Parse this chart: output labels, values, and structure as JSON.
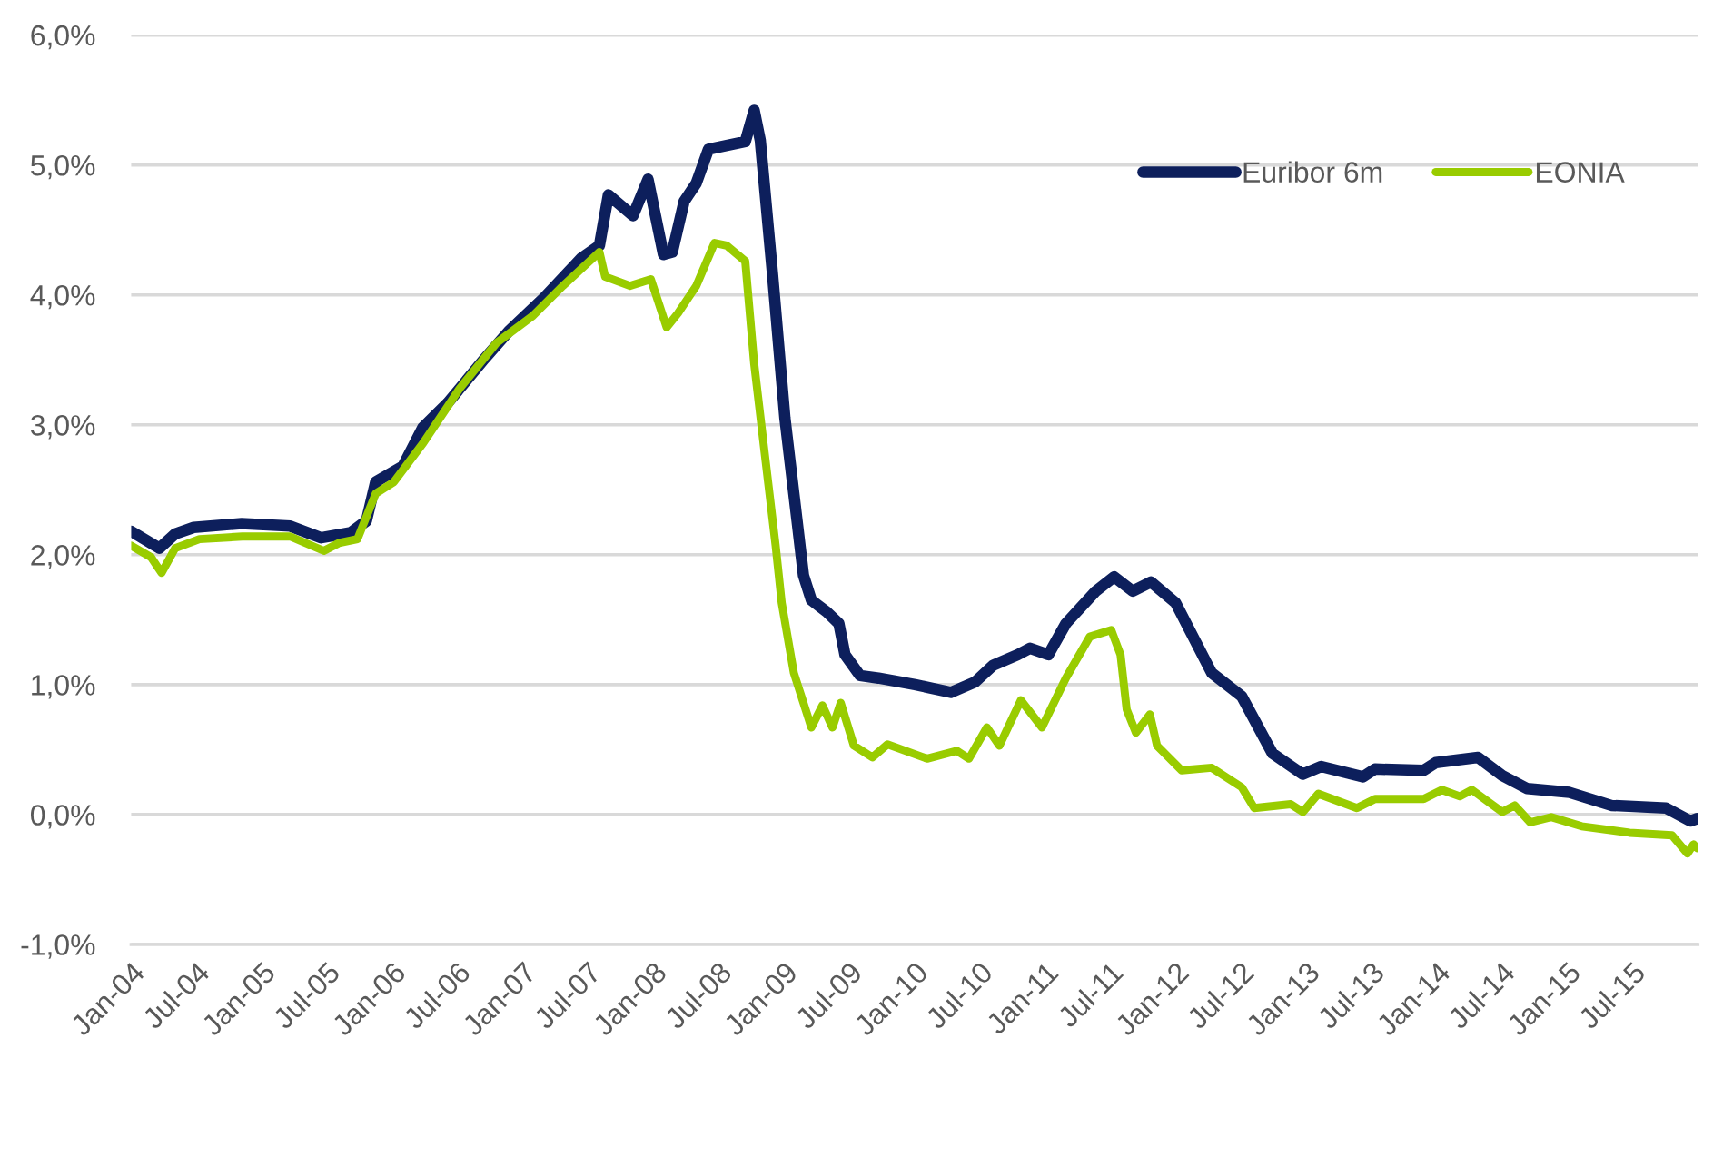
{
  "chart_data": {
    "type": "line",
    "xlim": [
      "2004-01-01",
      "2016-01-01"
    ],
    "xticks": [
      {
        "value": "2004-01-01",
        "label": "Jan-04"
      },
      {
        "value": "2004-07-01",
        "label": "Jul-04"
      },
      {
        "value": "2005-01-01",
        "label": "Jan-05"
      },
      {
        "value": "2005-07-01",
        "label": "Jul-05"
      },
      {
        "value": "2006-01-01",
        "label": "Jan-06"
      },
      {
        "value": "2006-07-01",
        "label": "Jul-06"
      },
      {
        "value": "2007-01-01",
        "label": "Jan-07"
      },
      {
        "value": "2007-07-01",
        "label": "Jul-07"
      },
      {
        "value": "2008-01-01",
        "label": "Jan-08"
      },
      {
        "value": "2008-07-01",
        "label": "Jul-08"
      },
      {
        "value": "2009-01-01",
        "label": "Jan-09"
      },
      {
        "value": "2009-07-01",
        "label": "Jul-09"
      },
      {
        "value": "2010-01-01",
        "label": "Jan-10"
      },
      {
        "value": "2010-07-01",
        "label": "Jul-10"
      },
      {
        "value": "2011-01-01",
        "label": "Jan-11"
      },
      {
        "value": "2011-07-01",
        "label": "Jul-11"
      },
      {
        "value": "2012-01-01",
        "label": "Jan-12"
      },
      {
        "value": "2012-07-01",
        "label": "Jul-12"
      },
      {
        "value": "2013-01-01",
        "label": "Jan-13"
      },
      {
        "value": "2013-07-01",
        "label": "Jul-13"
      },
      {
        "value": "2014-01-01",
        "label": "Jan-14"
      },
      {
        "value": "2014-07-01",
        "label": "Jul-14"
      },
      {
        "value": "2015-01-01",
        "label": "Jan-15"
      },
      {
        "value": "2015-07-01",
        "label": "Jul-15"
      }
    ],
    "ylim": [
      -1,
      6
    ],
    "yticks": [
      {
        "value": -1,
        "label": "-1,0%"
      },
      {
        "value": 0,
        "label": "0,0%"
      },
      {
        "value": 1,
        "label": "1,0%"
      },
      {
        "value": 2,
        "label": "2,0%"
      },
      {
        "value": 3,
        "label": "3,0%"
      },
      {
        "value": 4,
        "label": "4,0%"
      },
      {
        "value": 5,
        "label": "5,0%"
      },
      {
        "value": 6,
        "label": "6,0%"
      }
    ],
    "grid": "y",
    "legend": "top right",
    "marker": "none",
    "line_style": "solid",
    "series": [
      {
        "name": "Euribor 6m",
        "color": "#0d1f5c",
        "x": [
          "2004-01-01",
          "2004-03-20",
          "2004-05-03",
          "2004-06-24",
          "2004-11-05",
          "2005-03-21",
          "2005-06-15",
          "2005-09-06",
          "2005-10-20",
          "2005-11-15",
          "2006-01-30",
          "2006-03-27",
          "2006-06-05",
          "2006-09-16",
          "2006-11-22",
          "2007-03-02",
          "2007-06-12",
          "2007-08-03",
          "2007-08-28",
          "2007-11-05",
          "2007-12-17",
          "2008-01-29",
          "2008-02-23",
          "2008-03-27",
          "2008-04-30",
          "2008-06-03",
          "2008-09-14",
          "2008-10-09",
          "2008-10-26",
          "2008-11-29",
          "2009-01-03",
          "2009-02-06",
          "2009-02-24",
          "2009-03-18",
          "2009-04-30",
          "2009-06-03",
          "2009-06-20",
          "2009-08-01",
          "2009-09-22",
          "2010-01-02",
          "2010-04-12",
          "2010-06-19",
          "2010-08-09",
          "2010-10-16",
          "2010-11-20",
          "2011-01-10",
          "2011-02-28",
          "2011-05-23",
          "2011-07-13",
          "2011-09-03",
          "2011-10-24",
          "2012-01-01",
          "2012-04-11",
          "2012-07-04",
          "2012-09-28",
          "2012-12-22",
          "2013-02-11",
          "2013-06-08",
          "2013-07-12",
          "2013-11-25",
          "2013-12-29",
          "2014-04-26",
          "2014-07-03",
          "2014-09-10",
          "2015-01-07",
          "2015-05-04",
          "2015-10-04",
          "2015-12-11",
          "2015-12-31"
        ],
        "values": [
          2.18,
          2.05,
          2.16,
          2.21,
          2.24,
          2.22,
          2.13,
          2.17,
          2.26,
          2.56,
          2.68,
          2.98,
          3.17,
          3.51,
          3.72,
          3.98,
          4.28,
          4.38,
          4.77,
          4.61,
          4.89,
          4.31,
          4.33,
          4.72,
          4.86,
          5.12,
          5.18,
          5.42,
          5.19,
          4.17,
          3.05,
          2.26,
          1.84,
          1.65,
          1.56,
          1.47,
          1.23,
          1.07,
          1.05,
          1.0,
          0.94,
          1.02,
          1.15,
          1.23,
          1.28,
          1.23,
          1.47,
          1.72,
          1.83,
          1.72,
          1.79,
          1.63,
          1.09,
          0.91,
          0.47,
          0.31,
          0.37,
          0.29,
          0.35,
          0.34,
          0.4,
          0.44,
          0.3,
          0.2,
          0.17,
          0.07,
          0.05,
          -0.05,
          -0.03
        ]
      },
      {
        "name": "EONIA",
        "color": "#99cc00",
        "x": [
          "2004-01-01",
          "2004-02-26",
          "2004-03-26",
          "2004-05-03",
          "2004-07-10",
          "2004-11-07",
          "2005-03-21",
          "2005-06-23",
          "2005-08-04",
          "2005-09-25",
          "2005-11-15",
          "2006-01-05",
          "2006-03-28",
          "2006-07-08",
          "2006-10-19",
          "2007-01-29",
          "2007-04-23",
          "2007-08-03",
          "2007-08-19",
          "2007-10-27",
          "2007-12-25",
          "2008-02-07",
          "2008-03-10",
          "2008-04-30",
          "2008-06-20",
          "2008-07-24",
          "2008-09-14",
          "2008-10-09",
          "2008-11-04",
          "2008-12-08",
          "2008-12-25",
          "2009-01-28",
          "2009-03-18",
          "2009-04-18",
          "2009-05-16",
          "2009-06-08",
          "2009-07-15",
          "2009-09-05",
          "2009-10-17",
          "2010-02-05",
          "2010-04-29",
          "2010-06-02",
          "2010-07-22",
          "2010-08-26",
          "2010-10-25",
          "2010-12-23",
          "2011-02-28",
          "2011-05-06",
          "2011-07-05",
          "2011-07-31",
          "2011-08-17",
          "2011-09-12",
          "2011-10-21",
          "2011-11-10",
          "2012-01-18",
          "2012-04-11",
          "2012-07-04",
          "2012-08-08",
          "2012-11-18",
          "2012-12-22",
          "2013-02-03",
          "2013-05-22",
          "2013-07-12",
          "2013-11-25",
          "2014-01-15",
          "2014-03-06",
          "2014-04-09",
          "2014-07-03",
          "2014-08-07",
          "2014-09-19",
          "2014-11-17",
          "2015-02-10",
          "2015-06-24",
          "2015-10-21",
          "2015-12-03",
          "2015-12-20",
          "2015-12-31"
        ],
        "values": [
          2.07,
          1.98,
          1.86,
          2.05,
          2.12,
          2.14,
          2.14,
          2.03,
          2.09,
          2.12,
          2.47,
          2.56,
          2.86,
          3.28,
          3.63,
          3.84,
          4.07,
          4.33,
          4.14,
          4.07,
          4.12,
          3.75,
          3.86,
          4.07,
          4.4,
          4.38,
          4.26,
          3.47,
          2.86,
          2.07,
          1.63,
          1.09,
          0.67,
          0.84,
          0.67,
          0.86,
          0.53,
          0.44,
          0.54,
          0.43,
          0.49,
          0.43,
          0.67,
          0.53,
          0.88,
          0.67,
          1.05,
          1.37,
          1.42,
          1.23,
          0.81,
          0.63,
          0.77,
          0.53,
          0.34,
          0.36,
          0.21,
          0.05,
          0.08,
          0.02,
          0.16,
          0.05,
          0.12,
          0.12,
          0.19,
          0.14,
          0.19,
          0.02,
          0.07,
          -0.06,
          -0.02,
          -0.09,
          -0.14,
          -0.16,
          -0.3,
          -0.23,
          -0.26
        ]
      }
    ]
  }
}
